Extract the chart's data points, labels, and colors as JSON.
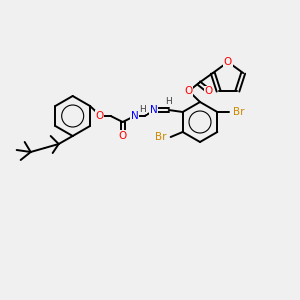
{
  "background_color": "#f0f0f0",
  "bond_color": "#000000",
  "atom_colors": {
    "O": "#ff0000",
    "N": "#0000ff",
    "Br": "#cc8800",
    "H": "#404040"
  },
  "title": "",
  "figsize": [
    3.0,
    3.0
  ],
  "dpi": 100
}
